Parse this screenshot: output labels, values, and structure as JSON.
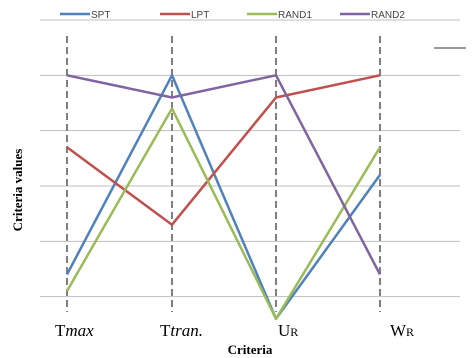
{
  "chart_data": {
    "type": "line",
    "categories": [
      {
        "main": "T",
        "sub": "max",
        "sub_style": "italic"
      },
      {
        "main": "T",
        "sub": "tran.",
        "sub_style": "italic"
      },
      {
        "main": "U",
        "sub": "R",
        "sub_style": "normal"
      },
      {
        "main": "W",
        "sub": "R",
        "sub_style": "normal"
      }
    ],
    "series": [
      {
        "name": "SPT",
        "color": "#4f81bd",
        "values": [
          1.4,
          5.0,
          0.6,
          3.2
        ]
      },
      {
        "name": "LPT",
        "color": "#c0504d",
        "values": [
          3.7,
          2.3,
          4.6,
          5.0
        ]
      },
      {
        "name": "RAND1",
        "color": "#9bbb59",
        "values": [
          1.1,
          4.4,
          0.6,
          3.7
        ]
      },
      {
        "name": "RAND2",
        "color": "#8064a2",
        "values": [
          5.0,
          4.6,
          5.0,
          1.4
        ]
      }
    ],
    "xlabel": "Criteria",
    "ylabel": "Criteria values",
    "ylim": [
      0,
      6
    ],
    "grid": true,
    "legend_position": "top"
  }
}
